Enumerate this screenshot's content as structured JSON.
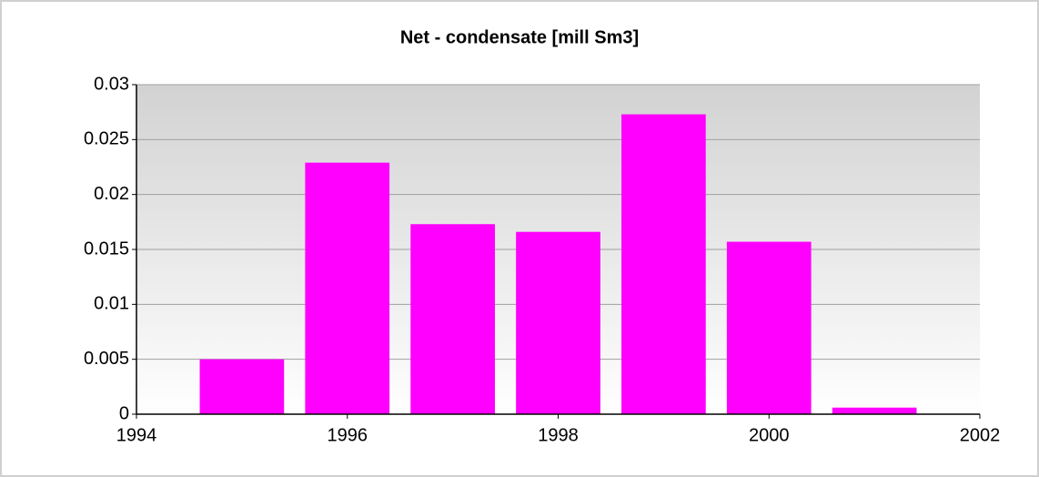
{
  "chart_data": {
    "type": "bar",
    "title": "Net - condensate [mill Sm3]",
    "x": [
      1995,
      1996,
      1997,
      1998,
      1999,
      2000,
      2001
    ],
    "values": [
      0.005,
      0.0229,
      0.0173,
      0.0166,
      0.0273,
      0.0157,
      0.0006
    ],
    "color": "#ff00ff",
    "xlim": [
      1994,
      2002
    ],
    "xticks": [
      1994,
      1996,
      1998,
      2000,
      2002
    ],
    "ylim": [
      0,
      0.03
    ],
    "yticks": [
      0,
      0.005,
      0.01,
      0.015,
      0.02,
      0.025,
      0.03
    ],
    "grid": true
  }
}
